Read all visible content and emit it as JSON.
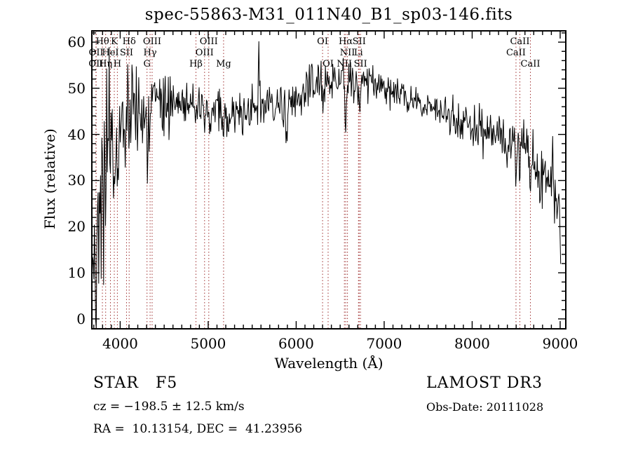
{
  "title": "spec-55863-M31_011N40_B1_sp03-146.fits",
  "annotations": {
    "class_label": "STAR   F5",
    "survey": "LAMOST DR3",
    "cz": "cz = −198.5 ± 12.5 km/s",
    "obs_date": "Obs-Date: 20111028",
    "radec": "RA =  10.13154, DEC =  41.23956"
  },
  "chart_data": {
    "type": "line",
    "title": "spec-55863-M31_011N40_B1_sp03-146.fits",
    "xlabel": "Wavelength (Å)",
    "ylabel": "Flux (relative)",
    "xlim": [
      3670,
      9072
    ],
    "ylim": [
      -2.3,
      62.6
    ],
    "x_major_ticks": [
      4000,
      5000,
      6000,
      7000,
      8000,
      9000
    ],
    "x_minor_step": 100,
    "y_major_ticks": [
      0,
      10,
      20,
      30,
      40,
      50,
      60
    ],
    "y_minor_step": 2,
    "grid": false,
    "legend": "none",
    "spectrum_color": "#000000",
    "marker_color": "#a03232",
    "spectral_lines": [
      {
        "label": "Hθ",
        "wavelength": 3798,
        "row": 1
      },
      {
        "label": "K",
        "wavelength": 3933,
        "row": 1
      },
      {
        "label": "Hδ",
        "wavelength": 4102,
        "row": 1
      },
      {
        "label": "OIII",
        "wavelength": 4363,
        "row": 1
      },
      {
        "label": "OIII",
        "wavelength": 5007,
        "row": 1
      },
      {
        "label": "OI",
        "wavelength": 6300,
        "row": 1
      },
      {
        "label": "Hα",
        "wavelength": 6563,
        "row": 1
      },
      {
        "label": "SII",
        "wavelength": 6716,
        "row": 1
      },
      {
        "label": "CaII",
        "wavelength": 8542,
        "row": 1
      },
      {
        "label": "OII",
        "wavelength": 3727,
        "row": 2
      },
      {
        "label": "HeI",
        "wavelength": 3889,
        "row": 2
      },
      {
        "label": "SII",
        "wavelength": 4072,
        "row": 2
      },
      {
        "label": "Hγ",
        "wavelength": 4340,
        "row": 2
      },
      {
        "label": "OIII",
        "wavelength": 4959,
        "row": 2
      },
      {
        "label": "NII",
        "wavelength": 6583,
        "row": 2
      },
      {
        "label": "Li",
        "wavelength": 6708,
        "row": 2
      },
      {
        "label": "CaII",
        "wavelength": 8498,
        "row": 2
      },
      {
        "label": "OII",
        "wavelength": 3725,
        "row": 3
      },
      {
        "label": "Hη",
        "wavelength": 3835,
        "row": 3
      },
      {
        "label": "H",
        "wavelength": 3968,
        "row": 3
      },
      {
        "label": "G",
        "wavelength": 4305,
        "row": 3
      },
      {
        "label": "Hβ",
        "wavelength": 4861,
        "row": 3
      },
      {
        "label": "Mg",
        "wavelength": 5175,
        "row": 3
      },
      {
        "label": "OI",
        "wavelength": 6363,
        "row": 3
      },
      {
        "label": "NII",
        "wavelength": 6548,
        "row": 3
      },
      {
        "label": "SII",
        "wavelength": 6731,
        "row": 3
      },
      {
        "label": "CaII",
        "wavelength": 8662,
        "row": 3
      }
    ],
    "continuum_points": [
      [
        3670,
        6
      ],
      [
        3690,
        10
      ],
      [
        3710,
        16
      ],
      [
        3730,
        22
      ],
      [
        3750,
        26
      ],
      [
        3780,
        30
      ],
      [
        3810,
        32
      ],
      [
        3840,
        34
      ],
      [
        3870,
        37
      ],
      [
        3900,
        40
      ],
      [
        3950,
        42
      ],
      [
        4000,
        44
      ],
      [
        4100,
        45
      ],
      [
        4200,
        45.5
      ],
      [
        4300,
        46
      ],
      [
        4400,
        46.5
      ],
      [
        4600,
        47
      ],
      [
        4800,
        47
      ],
      [
        5000,
        45.5
      ],
      [
        5100,
        45
      ],
      [
        5200,
        44.5
      ],
      [
        5300,
        44
      ],
      [
        5400,
        44.8
      ],
      [
        5500,
        45.5
      ],
      [
        5600,
        46
      ],
      [
        5700,
        46.3
      ],
      [
        5800,
        46
      ],
      [
        5900,
        46
      ],
      [
        6000,
        47.5
      ],
      [
        6100,
        49
      ],
      [
        6200,
        50.5
      ],
      [
        6300,
        51.5
      ],
      [
        6400,
        52
      ],
      [
        6500,
        52.5
      ],
      [
        6600,
        52
      ],
      [
        6700,
        52
      ],
      [
        6800,
        51.5
      ],
      [
        6900,
        51
      ],
      [
        7000,
        50.5
      ],
      [
        7100,
        49.5
      ],
      [
        7200,
        48.5
      ],
      [
        7300,
        47.5
      ],
      [
        7400,
        46.8
      ],
      [
        7500,
        46
      ],
      [
        7600,
        45.2
      ],
      [
        7700,
        44.4
      ],
      [
        7800,
        43.6
      ],
      [
        7900,
        42.8
      ],
      [
        8000,
        42
      ],
      [
        8100,
        41.2
      ],
      [
        8200,
        40.4
      ],
      [
        8300,
        39.7
      ],
      [
        8400,
        39
      ],
      [
        8500,
        38.3
      ],
      [
        8600,
        36.5
      ],
      [
        8700,
        33.5
      ],
      [
        8750,
        32
      ],
      [
        8800,
        30.5
      ],
      [
        8850,
        29.5
      ],
      [
        8900,
        28
      ],
      [
        8950,
        27.5
      ],
      [
        8995,
        26.5
      ],
      [
        9005,
        12
      ],
      [
        9012,
        1
      ]
    ],
    "absorption_features": [
      {
        "line": "OII 3727",
        "center": 3727,
        "depth": 4,
        "width": 8
      },
      {
        "line": "Hθ 3798",
        "center": 3798,
        "depth": 6,
        "width": 8
      },
      {
        "line": "Hη 3835",
        "center": 3835,
        "depth": 6,
        "width": 8
      },
      {
        "line": "CaII K 3933",
        "center": 3933,
        "depth": 14,
        "width": 10
      },
      {
        "line": "CaII H 3968",
        "center": 3968,
        "depth": 11,
        "width": 10
      },
      {
        "line": "SII 4072",
        "center": 4072,
        "depth": 4,
        "width": 8
      },
      {
        "line": "Hδ 4102",
        "center": 4102,
        "depth": 11,
        "width": 8
      },
      {
        "line": "G 4305",
        "center": 4305,
        "depth": 8,
        "width": 12
      },
      {
        "line": "Hγ 4340",
        "center": 4340,
        "depth": 7,
        "width": 8
      },
      {
        "line": "Hβ 4861",
        "center": 4861,
        "depth": 10,
        "width": 8
      },
      {
        "line": "OIII 4959",
        "center": 4959,
        "depth": 5,
        "width": 7
      },
      {
        "line": "OIII 5007",
        "center": 5007,
        "depth": 4,
        "width": 7
      },
      {
        "line": "Mg 5175",
        "center": 5175,
        "depth": 3.5,
        "width": 16
      },
      {
        "line": "Na 5893",
        "center": 5893,
        "depth": 8.5,
        "width": 10
      },
      {
        "line": "OI 6300",
        "center": 6300,
        "depth": 4,
        "width": 7
      },
      {
        "line": "Hα 6563",
        "center": 6563,
        "depth": 13,
        "width": 8
      },
      {
        "line": "SII 6716",
        "center": 6716,
        "depth": 4,
        "width": 7
      },
      {
        "line": "SII 6731",
        "center": 6731,
        "depth": 3,
        "width": 7
      },
      {
        "line": "CaII 8498",
        "center": 8498,
        "depth": 5,
        "width": 7
      },
      {
        "line": "CaII 8542",
        "center": 8542,
        "depth": 6.5,
        "width": 7
      },
      {
        "line": "CaII 8662",
        "center": 8662,
        "depth": 6.5,
        "width": 7
      }
    ],
    "emission_spikes": [
      {
        "center": 4090,
        "height": 11,
        "width": 4
      },
      {
        "center": 5577,
        "height": 17,
        "width": 4
      },
      {
        "center": 8913,
        "height": 12.5,
        "width": 5
      }
    ],
    "noise_sigma_points": [
      [
        3670,
        7
      ],
      [
        3720,
        10
      ],
      [
        3780,
        12
      ],
      [
        3850,
        11
      ],
      [
        3920,
        8
      ],
      [
        4000,
        6
      ],
      [
        4150,
        4.5
      ],
      [
        4300,
        4
      ],
      [
        4500,
        3.2
      ],
      [
        4800,
        2.8
      ],
      [
        5200,
        2.6
      ],
      [
        5600,
        2.4
      ],
      [
        6000,
        2.4
      ],
      [
        6400,
        2.2
      ],
      [
        6800,
        2
      ],
      [
        7200,
        1.8
      ],
      [
        7600,
        1.8
      ],
      [
        8000,
        2.2
      ],
      [
        8400,
        2.6
      ],
      [
        8700,
        3
      ],
      [
        8900,
        3.2
      ],
      [
        9000,
        2.5
      ],
      [
        9012,
        2
      ]
    ],
    "sample_step": 7,
    "seed": 42
  }
}
